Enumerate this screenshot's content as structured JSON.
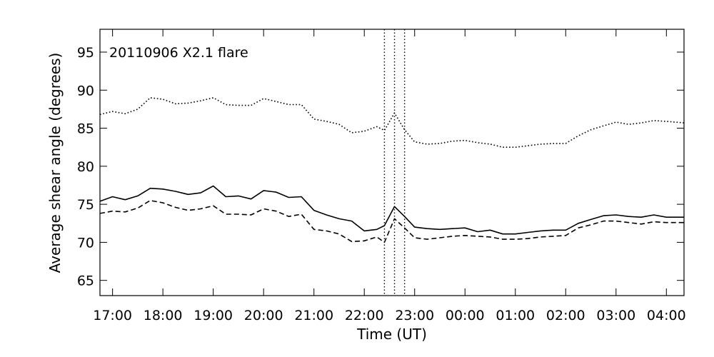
{
  "chart_data": {
    "type": "line",
    "title": "20110906 X2.1 flare",
    "xlabel": "Time (UT)",
    "ylabel": "Average shear angle (degrees)",
    "xlim": [
      16.75,
      28.35
    ],
    "ylim": [
      63,
      98
    ],
    "x_ticks": [
      {
        "x": 17,
        "label": "17:00"
      },
      {
        "x": 18,
        "label": "18:00"
      },
      {
        "x": 19,
        "label": "19:00"
      },
      {
        "x": 20,
        "label": "20:00"
      },
      {
        "x": 21,
        "label": "21:00"
      },
      {
        "x": 22,
        "label": "22:00"
      },
      {
        "x": 23,
        "label": "23:00"
      },
      {
        "x": 24,
        "label": "00:00"
      },
      {
        "x": 25,
        "label": "01:00"
      },
      {
        "x": 26,
        "label": "02:00"
      },
      {
        "x": 27,
        "label": "03:00"
      },
      {
        "x": 28,
        "label": "04:00"
      }
    ],
    "y_ticks": [
      65,
      70,
      75,
      80,
      85,
      90,
      95
    ],
    "grid": false,
    "vertical_markers": [
      22.4,
      22.6,
      22.8
    ],
    "series": [
      {
        "style": "dotted",
        "x": [
          16.75,
          17.0,
          17.25,
          17.5,
          17.75,
          18.0,
          18.25,
          18.5,
          18.75,
          19.0,
          19.25,
          19.5,
          19.75,
          20.0,
          20.25,
          20.5,
          20.75,
          21.0,
          21.25,
          21.5,
          21.75,
          22.0,
          22.25,
          22.4,
          22.6,
          22.8,
          23.0,
          23.25,
          23.5,
          23.75,
          24.0,
          24.25,
          24.5,
          24.75,
          25.0,
          25.25,
          25.5,
          25.75,
          26.0,
          26.25,
          26.5,
          26.75,
          27.0,
          27.25,
          27.5,
          27.75,
          28.0,
          28.35
        ],
        "y": [
          86.8,
          87.2,
          86.9,
          87.5,
          89.0,
          88.8,
          88.2,
          88.3,
          88.6,
          89.0,
          88.1,
          88.0,
          88.0,
          88.9,
          88.5,
          88.1,
          88.1,
          86.2,
          85.9,
          85.5,
          84.4,
          84.6,
          85.2,
          84.7,
          87.0,
          84.8,
          83.2,
          82.9,
          83.0,
          83.3,
          83.4,
          83.1,
          82.9,
          82.5,
          82.5,
          82.7,
          82.9,
          83.0,
          83.0,
          84.0,
          84.8,
          85.3,
          85.8,
          85.5,
          85.7,
          86.0,
          85.9,
          85.7
        ]
      },
      {
        "style": "solid",
        "x": [
          16.75,
          17.0,
          17.25,
          17.5,
          17.75,
          18.0,
          18.25,
          18.5,
          18.75,
          19.0,
          19.25,
          19.5,
          19.75,
          20.0,
          20.25,
          20.5,
          20.75,
          21.0,
          21.25,
          21.5,
          21.75,
          22.0,
          22.25,
          22.4,
          22.6,
          22.8,
          23.0,
          23.25,
          23.5,
          23.75,
          24.0,
          24.25,
          24.5,
          24.75,
          25.0,
          25.25,
          25.5,
          25.75,
          26.0,
          26.25,
          26.5,
          26.75,
          27.0,
          27.25,
          27.5,
          27.75,
          28.0,
          28.35
        ],
        "y": [
          75.4,
          76.0,
          75.6,
          76.1,
          77.1,
          77.0,
          76.7,
          76.3,
          76.5,
          77.4,
          76.0,
          76.1,
          75.7,
          76.8,
          76.6,
          75.9,
          76.0,
          74.2,
          73.6,
          73.1,
          72.8,
          71.5,
          71.7,
          72.2,
          74.7,
          73.4,
          72.0,
          71.8,
          71.7,
          71.8,
          71.9,
          71.4,
          71.6,
          71.1,
          71.1,
          71.3,
          71.5,
          71.6,
          71.6,
          72.5,
          73.0,
          73.5,
          73.6,
          73.4,
          73.3,
          73.6,
          73.3,
          73.3
        ]
      },
      {
        "style": "dashed",
        "x": [
          16.75,
          17.0,
          17.25,
          17.5,
          17.75,
          18.0,
          18.25,
          18.5,
          18.75,
          19.0,
          19.25,
          19.5,
          19.75,
          20.0,
          20.25,
          20.5,
          20.75,
          21.0,
          21.25,
          21.5,
          21.75,
          22.0,
          22.25,
          22.4,
          22.6,
          22.8,
          23.0,
          23.25,
          23.5,
          23.75,
          24.0,
          24.25,
          24.5,
          24.75,
          25.0,
          25.25,
          25.5,
          25.75,
          26.0,
          26.25,
          26.5,
          26.75,
          27.0,
          27.25,
          27.5,
          27.75,
          28.0,
          28.35
        ],
        "y": [
          73.8,
          74.1,
          74.0,
          74.5,
          75.5,
          75.2,
          74.6,
          74.2,
          74.4,
          74.8,
          73.7,
          73.7,
          73.6,
          74.4,
          74.1,
          73.4,
          73.7,
          71.7,
          71.5,
          71.1,
          70.1,
          70.2,
          70.7,
          70.0,
          73.1,
          71.9,
          70.6,
          70.4,
          70.6,
          70.8,
          70.9,
          70.8,
          70.7,
          70.4,
          70.4,
          70.5,
          70.7,
          70.8,
          70.9,
          71.9,
          72.3,
          72.8,
          72.8,
          72.6,
          72.4,
          72.7,
          72.6,
          72.6
        ]
      }
    ]
  }
}
